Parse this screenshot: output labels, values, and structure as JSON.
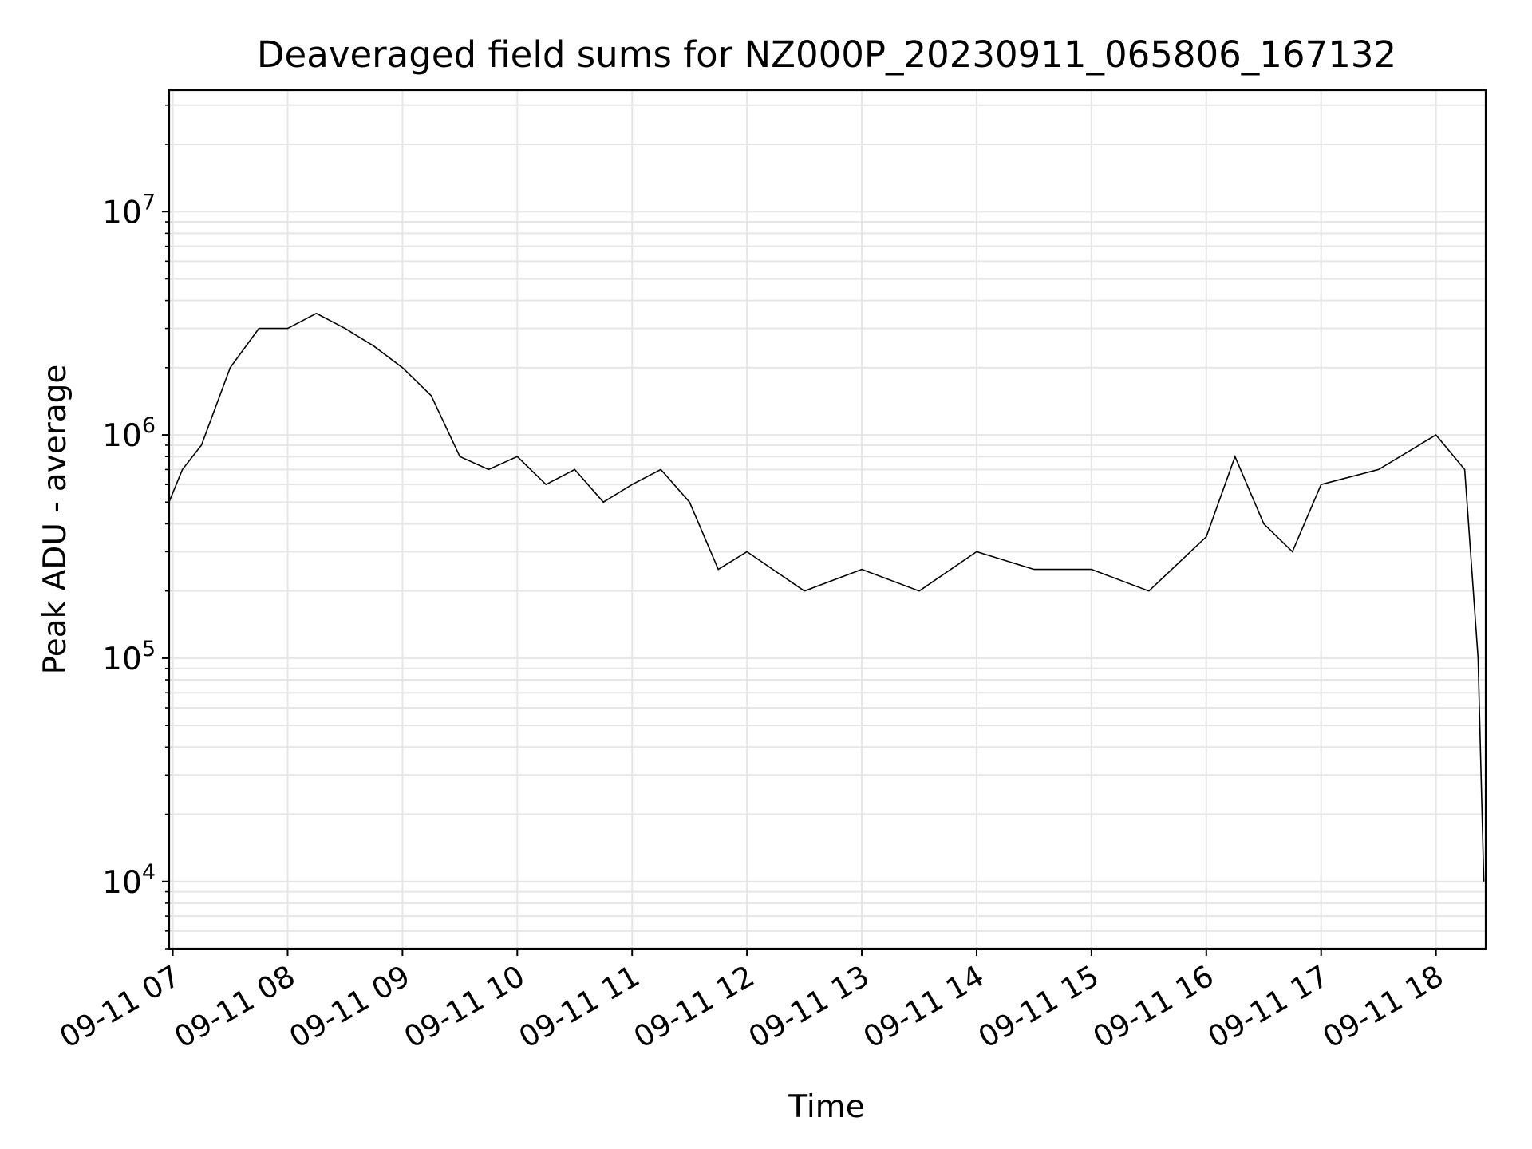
{
  "chart_data": {
    "type": "line",
    "title": "Deaveraged field sums for NZ000P_20230911_065806_167132",
    "xlabel": "Time",
    "ylabel": "Peak ADU - average",
    "yscale": "log",
    "ylim": [
      5000,
      35000000
    ],
    "xlim": [
      "2023-09-11 06:58:06",
      "2023-09-11 18:26:00"
    ],
    "grid": true,
    "line_color": "#000000",
    "grid_color": "#e6e6e6",
    "x_ticks": [
      {
        "value": "2023-09-11 07:00",
        "label": "09-11 07"
      },
      {
        "value": "2023-09-11 08:00",
        "label": "09-11 08"
      },
      {
        "value": "2023-09-11 09:00",
        "label": "09-11 09"
      },
      {
        "value": "2023-09-11 10:00",
        "label": "09-11 10"
      },
      {
        "value": "2023-09-11 11:00",
        "label": "09-11 11"
      },
      {
        "value": "2023-09-11 12:00",
        "label": "09-11 12"
      },
      {
        "value": "2023-09-11 13:00",
        "label": "09-11 13"
      },
      {
        "value": "2023-09-11 14:00",
        "label": "09-11 14"
      },
      {
        "value": "2023-09-11 15:00",
        "label": "09-11 15"
      },
      {
        "value": "2023-09-11 16:00",
        "label": "09-11 16"
      },
      {
        "value": "2023-09-11 17:00",
        "label": "09-11 17"
      },
      {
        "value": "2023-09-11 18:00",
        "label": "09-11 18"
      }
    ],
    "y_ticks": [
      {
        "value": 10000,
        "base": "10",
        "exp": "4"
      },
      {
        "value": 100000,
        "base": "10",
        "exp": "5"
      },
      {
        "value": 1000000,
        "base": "10",
        "exp": "6"
      },
      {
        "value": 10000000,
        "base": "10",
        "exp": "7"
      }
    ],
    "series": [
      {
        "values": [
          {
            "x": "2023-09-11 06:58",
            "y": 500000
          },
          {
            "x": "2023-09-11 07:05",
            "y": 700000
          },
          {
            "x": "2023-09-11 07:15",
            "y": 900000
          },
          {
            "x": "2023-09-11 07:30",
            "y": 2000000
          },
          {
            "x": "2023-09-11 07:45",
            "y": 3000000
          },
          {
            "x": "2023-09-11 08:00",
            "y": 3000000
          },
          {
            "x": "2023-09-11 08:15",
            "y": 3500000
          },
          {
            "x": "2023-09-11 08:30",
            "y": 3000000
          },
          {
            "x": "2023-09-11 08:45",
            "y": 2500000
          },
          {
            "x": "2023-09-11 09:00",
            "y": 2000000
          },
          {
            "x": "2023-09-11 09:15",
            "y": 1500000
          },
          {
            "x": "2023-09-11 09:30",
            "y": 800000
          },
          {
            "x": "2023-09-11 09:45",
            "y": 700000
          },
          {
            "x": "2023-09-11 10:00",
            "y": 800000
          },
          {
            "x": "2023-09-11 10:15",
            "y": 600000
          },
          {
            "x": "2023-09-11 10:30",
            "y": 700000
          },
          {
            "x": "2023-09-11 10:45",
            "y": 500000
          },
          {
            "x": "2023-09-11 11:00",
            "y": 600000
          },
          {
            "x": "2023-09-11 11:15",
            "y": 700000
          },
          {
            "x": "2023-09-11 11:30",
            "y": 500000
          },
          {
            "x": "2023-09-11 11:45",
            "y": 250000
          },
          {
            "x": "2023-09-11 12:00",
            "y": 300000
          },
          {
            "x": "2023-09-11 12:30",
            "y": 200000
          },
          {
            "x": "2023-09-11 13:00",
            "y": 250000
          },
          {
            "x": "2023-09-11 13:30",
            "y": 200000
          },
          {
            "x": "2023-09-11 14:00",
            "y": 300000
          },
          {
            "x": "2023-09-11 14:30",
            "y": 250000
          },
          {
            "x": "2023-09-11 15:00",
            "y": 250000
          },
          {
            "x": "2023-09-11 15:30",
            "y": 200000
          },
          {
            "x": "2023-09-11 16:00",
            "y": 350000
          },
          {
            "x": "2023-09-11 16:15",
            "y": 800000
          },
          {
            "x": "2023-09-11 16:30",
            "y": 400000
          },
          {
            "x": "2023-09-11 16:45",
            "y": 300000
          },
          {
            "x": "2023-09-11 17:00",
            "y": 600000
          },
          {
            "x": "2023-09-11 17:30",
            "y": 700000
          },
          {
            "x": "2023-09-11 18:00",
            "y": 1000000
          },
          {
            "x": "2023-09-11 18:15",
            "y": 700000
          },
          {
            "x": "2023-09-11 18:22",
            "y": 100000
          },
          {
            "x": "2023-09-11 18:25",
            "y": 10000
          }
        ]
      }
    ]
  }
}
